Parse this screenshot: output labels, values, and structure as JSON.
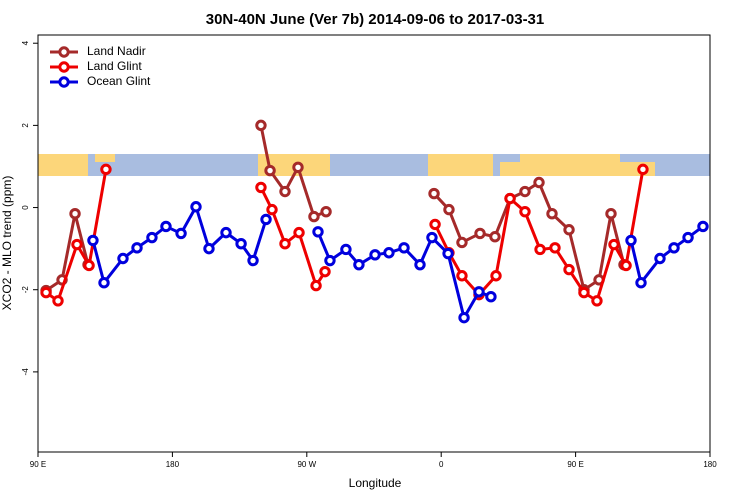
{
  "chart_data": {
    "type": "line",
    "title": "30N-40N June (Ver 7b)   2014-09-06 to 2017-03-31",
    "x_label": "Longitude",
    "y_label": "XCO2 - MLO trend (ppm)",
    "xlim": [
      90,
      540
    ],
    "ylim": [
      -5.95,
      4.2
    ],
    "xticks": [
      {
        "value": 90,
        "label": "90 E"
      },
      {
        "value": 180,
        "label": "180"
      },
      {
        "value": 270,
        "label": "90 W"
      },
      {
        "value": 360,
        "label": "0"
      },
      {
        "value": 450,
        "label": "90 E"
      },
      {
        "value": 540,
        "label": "180"
      }
    ],
    "yticks": [
      4,
      2,
      0,
      -2,
      -4
    ],
    "legend": "top-left",
    "series": [
      {
        "name": "Land Nadir",
        "color": "#a52a2a",
        "x": [
          95.4,
          106.1,
          114.8,
          123.5,
          null,
          239.3,
          245.4,
          255.4,
          264.1,
          274.8,
          282.9,
          null,
          355.2,
          365.2,
          373.9,
          386.0,
          396.0,
          406.1,
          416.1,
          425.5,
          434.2,
          445.6,
          455.6,
          465.7,
          473.7,
          482.4
        ],
        "values": [
          -2.02,
          -1.76,
          -0.15,
          -1.39,
          null,
          2.0,
          0.9,
          0.39,
          0.98,
          -0.22,
          -0.1,
          null,
          0.34,
          -0.05,
          -0.85,
          -0.63,
          -0.71,
          0.22,
          0.39,
          0.61,
          -0.15,
          -0.54,
          -2.0,
          -1.76,
          -0.15,
          -1.39
        ]
      },
      {
        "name": "Land Glint",
        "color": "#ee0000",
        "x": [
          95.4,
          103.4,
          116.1,
          124.2,
          135.5,
          null,
          239.3,
          246.7,
          255.4,
          264.8,
          276.2,
          282.2,
          null,
          355.9,
          365.2,
          373.9,
          385.3,
          396.7,
          406.1,
          416.1,
          426.2,
          436.2,
          445.6,
          455.6,
          464.3,
          475.7,
          483.8,
          495.1
        ],
        "values": [
          -2.07,
          -2.27,
          -0.9,
          -1.41,
          0.93,
          null,
          0.49,
          -0.05,
          -0.88,
          -0.61,
          -1.9,
          -1.56,
          null,
          -0.41,
          -1.1,
          -1.66,
          -2.12,
          -1.66,
          0.22,
          -0.1,
          -1.02,
          -0.98,
          -1.51,
          -2.07,
          -2.27,
          -0.9,
          -1.41,
          0.93
        ]
      },
      {
        "name": "Ocean Glint",
        "color": "#0000dd",
        "x": [
          126.8,
          134.2,
          146.9,
          156.3,
          166.3,
          175.7,
          185.8,
          195.8,
          204.5,
          215.9,
          226.0,
          234.0,
          242.7,
          null,
          277.5,
          285.5,
          296.2,
          304.9,
          315.7,
          325.0,
          335.1,
          345.8,
          353.8,
          364.6,
          375.3,
          385.3,
          393.3,
          null,
          487.1,
          493.8,
          506.5,
          515.9,
          525.3,
          535.3
        ],
        "values": [
          -0.8,
          -1.83,
          -1.24,
          -0.98,
          -0.73,
          -0.46,
          -0.63,
          0.02,
          -1.0,
          -0.61,
          -0.88,
          -1.29,
          -0.29,
          null,
          -0.59,
          -1.29,
          -1.02,
          -1.39,
          -1.15,
          -1.1,
          -0.98,
          -1.39,
          -0.73,
          -1.12,
          -2.68,
          -2.05,
          -2.17,
          null,
          -0.8,
          -1.83,
          -1.24,
          -0.98,
          -0.73,
          -0.46
        ]
      }
    ]
  }
}
